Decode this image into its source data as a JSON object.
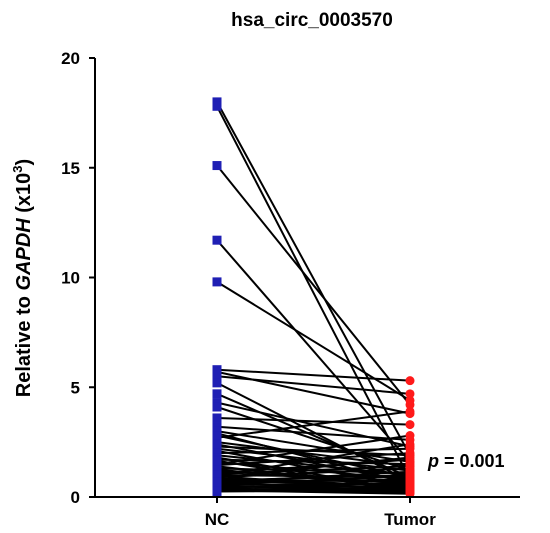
{
  "chart_data": {
    "type": "scatter",
    "title": "hsa_circ_0003570",
    "ylabel_prefix": "Relative to ",
    "ylabel_gene": "GAPDH",
    "ylabel_suffix": " (x10",
    "ylabel_exp": "3",
    "ylabel_close": ")",
    "ylim": [
      0,
      20
    ],
    "yticks": [
      "0",
      "5",
      "10",
      "15",
      "20"
    ],
    "categories": [
      "NC",
      "Tumor"
    ],
    "annotation": {
      "p_symbol": "p",
      "p_text": " = 0.001"
    },
    "colors": {
      "NC": "#1f1fb4",
      "Tumor": "#ff1a1a",
      "line": "#000000"
    },
    "paired_values": [
      [
        18.0,
        1.9
      ],
      [
        17.8,
        0.8
      ],
      [
        15.1,
        4.2
      ],
      [
        11.7,
        1.6
      ],
      [
        9.8,
        4.4
      ],
      [
        5.8,
        5.3
      ],
      [
        5.7,
        3.8
      ],
      [
        5.5,
        4.7
      ],
      [
        5.2,
        0.7
      ],
      [
        4.7,
        0.9
      ],
      [
        4.3,
        2.3
      ],
      [
        4.1,
        1.2
      ],
      [
        3.6,
        3.3
      ],
      [
        3.2,
        2.6
      ],
      [
        2.9,
        0.6
      ],
      [
        2.7,
        3.9
      ],
      [
        2.5,
        1.4
      ],
      [
        2.3,
        1.9
      ],
      [
        2.1,
        0.5
      ],
      [
        2.0,
        2.2
      ],
      [
        1.9,
        1.0
      ],
      [
        1.8,
        0.3
      ],
      [
        1.7,
        1.5
      ],
      [
        1.6,
        0.8
      ],
      [
        1.5,
        2.8
      ],
      [
        1.4,
        0.4
      ],
      [
        1.3,
        1.1
      ],
      [
        1.2,
        0.6
      ],
      [
        1.1,
        1.7
      ],
      [
        1.0,
        0.9
      ],
      [
        0.95,
        0.3
      ],
      [
        0.9,
        1.3
      ],
      [
        0.85,
        0.5
      ],
      [
        0.8,
        0.7
      ],
      [
        0.75,
        1.0
      ],
      [
        0.7,
        0.2
      ],
      [
        0.65,
        0.8
      ],
      [
        0.6,
        0.4
      ],
      [
        0.55,
        0.6
      ],
      [
        0.5,
        0.3
      ],
      [
        0.45,
        0.5
      ],
      [
        0.4,
        0.2
      ],
      [
        0.35,
        0.4
      ],
      [
        0.3,
        0.15
      ],
      [
        0.25,
        0.3
      ],
      [
        3.0,
        1.6
      ],
      [
        2.8,
        0.9
      ],
      [
        2.2,
        1.2
      ],
      [
        1.45,
        2.0
      ],
      [
        1.25,
        0.45
      ],
      [
        1.05,
        1.4
      ],
      [
        0.88,
        1.8
      ],
      [
        0.72,
        0.55
      ],
      [
        0.58,
        0.95
      ],
      [
        0.42,
        0.65
      ],
      [
        0.3,
        0.35
      ],
      [
        1.65,
        0.25
      ],
      [
        2.4,
        0.7
      ],
      [
        0.98,
        2.4
      ],
      [
        0.68,
        1.15
      ]
    ]
  }
}
